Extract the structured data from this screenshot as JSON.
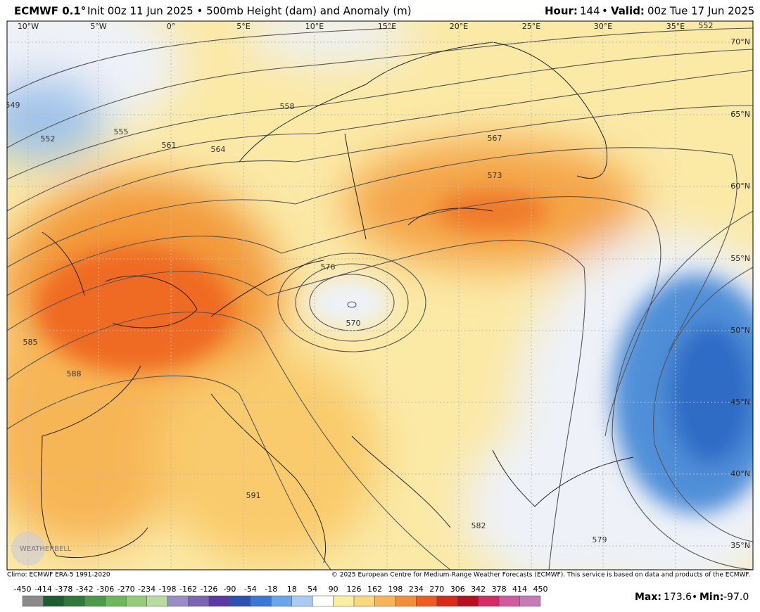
{
  "header": {
    "model": "ECMWF 0.1°",
    "init": "Init 00z 11 Jun 2025 • 500mb Height (dam) and Anomaly (m)",
    "hour_label": "Hour:",
    "hour": "144",
    "separator": "•",
    "valid_label": "Valid:",
    "valid": "00z Tue 17 Jun 2025"
  },
  "map": {
    "longitudes": [
      "10°W",
      "5°W",
      "0°",
      "5°E",
      "10°E",
      "15°E",
      "20°E",
      "25°E",
      "30°E",
      "35°E"
    ],
    "latitudes": [
      "70°N",
      "65°N",
      "60°N",
      "55°N",
      "50°N",
      "45°N",
      "40°N",
      "35°N"
    ],
    "contour_labels": [
      "549",
      "552",
      "555",
      "558",
      "561",
      "564",
      "567",
      "573",
      "576",
      "570",
      "585",
      "588",
      "591",
      "582",
      "579",
      "552"
    ],
    "watermark": "WEATHERBELL"
  },
  "footer": {
    "climo": "Climo: ECMWF ERA-5 1991-2020",
    "copyright": "© 2025 European Centre for Medium-Range Weather Forecasts (ECMWF). This service is based on data and products of the ECMWF.",
    "colorbar_ticks": [
      -450,
      -414,
      -378,
      -342,
      -306,
      -270,
      -234,
      -198,
      -162,
      -126,
      -90,
      -54,
      -18,
      18,
      54,
      90,
      126,
      162,
      198,
      234,
      270,
      306,
      342,
      378,
      414,
      450
    ],
    "max_label": "Max:",
    "max": "173.6",
    "separator": "•",
    "min_label": "Min:",
    "min": "-97.0"
  }
}
